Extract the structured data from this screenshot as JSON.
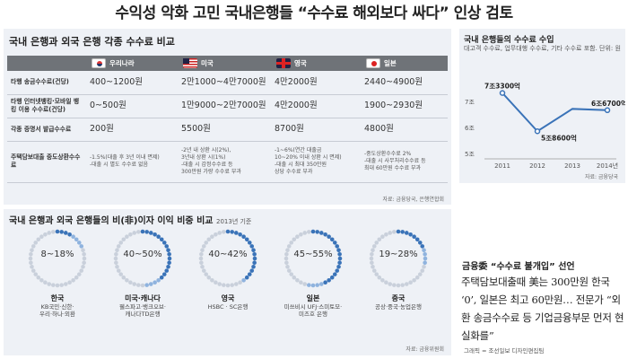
{
  "title": "수익성 악화 고민 국내은행들 “수수료 해외보다 싸다” 인상 검토",
  "table": {
    "heading": "국내 은행과 외국 은행 각종 수수료 비교",
    "columns": [
      {
        "label": "우리나라",
        "flag": "kr"
      },
      {
        "label": "미국",
        "flag": "us"
      },
      {
        "label": "영국",
        "flag": "uk"
      },
      {
        "label": "일본",
        "flag": "jp"
      }
    ],
    "rows": [
      {
        "label": "타행 송금수수료(건당)",
        "cells": [
          "400~1200원",
          "2만1000~4만7000원",
          "4만2000원",
          "2440~4900원"
        ],
        "size": "big"
      },
      {
        "label": "타행 인터넷뱅킹·모바일 뱅킹 이용 수수료(건당)",
        "cells": [
          "0~500원",
          "1만9000~2만7000원",
          "4만2000원",
          "1900~2930원"
        ],
        "size": "big"
      },
      {
        "label": "각종 증명서 발급수수료",
        "cells": [
          "200원",
          "5500원",
          "8700원",
          "4800원"
        ],
        "size": "big"
      },
      {
        "label": "주택담보대출 중도상환수수료",
        "cells": [
          "-1.5%(대출 후 3년 이내 면제)\n-대출 시 별도 수수료 없음",
          "-2년 내 상환 시(2%),\n3년내 상환 시(1%)\n-대출 시 감정수수료 등\n300만원 가량 수수료 부과",
          "-1~6%(연간 대출금\n10~20% 이내 상환 시 면제)\n-대출 시 최대 350만원\n상당 수수료 부과",
          "-중도상환수수료 2%\n-대출 시 사무처리수수료 등\n최대 60만원 수수료 부과"
        ],
        "size": "small"
      }
    ],
    "source": "자료: 금융당국, 은행연합회"
  },
  "margin": {
    "heading": "국내 은행과 외국 은행들의 비(非)이자 이익 비중 비교",
    "year": "2013년 기준",
    "items": [
      {
        "range": "8~18%",
        "lo": 8,
        "hi": 18,
        "country": "한국",
        "banks": "KB국민·신한·\n우리·하나·외환"
      },
      {
        "range": "40~50%",
        "lo": 40,
        "hi": 50,
        "country": "미국·캐나다",
        "banks": "웰스파고·뱅크오브·\n캐나다TD은행"
      },
      {
        "range": "40~42%",
        "lo": 40,
        "hi": 42,
        "country": "영국",
        "banks": "HSBC · SC은행"
      },
      {
        "range": "45~55%",
        "lo": 45,
        "hi": 55,
        "country": "일본",
        "banks": "미쓰비시 UFJ·스미토모·\n미즈호 은행"
      },
      {
        "range": "19~28%",
        "lo": 19,
        "hi": 28,
        "country": "중국",
        "banks": "공상·중국·농업은행"
      }
    ],
    "source": "자료: 금융위원회"
  },
  "chart_data": {
    "type": "line",
    "title": "국내 은행들의 수수료 수입",
    "subtitle": "대고객 수수료, 업무대행 수수료, 기타 수수료 포함. 단위: 원",
    "x": [
      "2011",
      "2012",
      "2013",
      "2014년"
    ],
    "values": [
      7.33,
      5.86,
      null,
      6.67
    ],
    "labels": [
      "7조3300억",
      "5조8600억",
      "",
      "6조6700억"
    ],
    "yticks": [
      "5조",
      "6조",
      "7조"
    ],
    "ylim": [
      4.8,
      7.8
    ],
    "source": "자료: 금융당국",
    "color": "#3a73b8"
  },
  "side": {
    "heading": "금융委 “수수료 불개입” 선언",
    "body": "주택담보대출때 美는 300만원 한국 ‘0’, 일본은 최고 60만원… 전문가 “외환 송금수수료 등 기업금융부문 먼저 현실화를”"
  },
  "credit": "그래픽 = 조선일보 디자인편집팀"
}
